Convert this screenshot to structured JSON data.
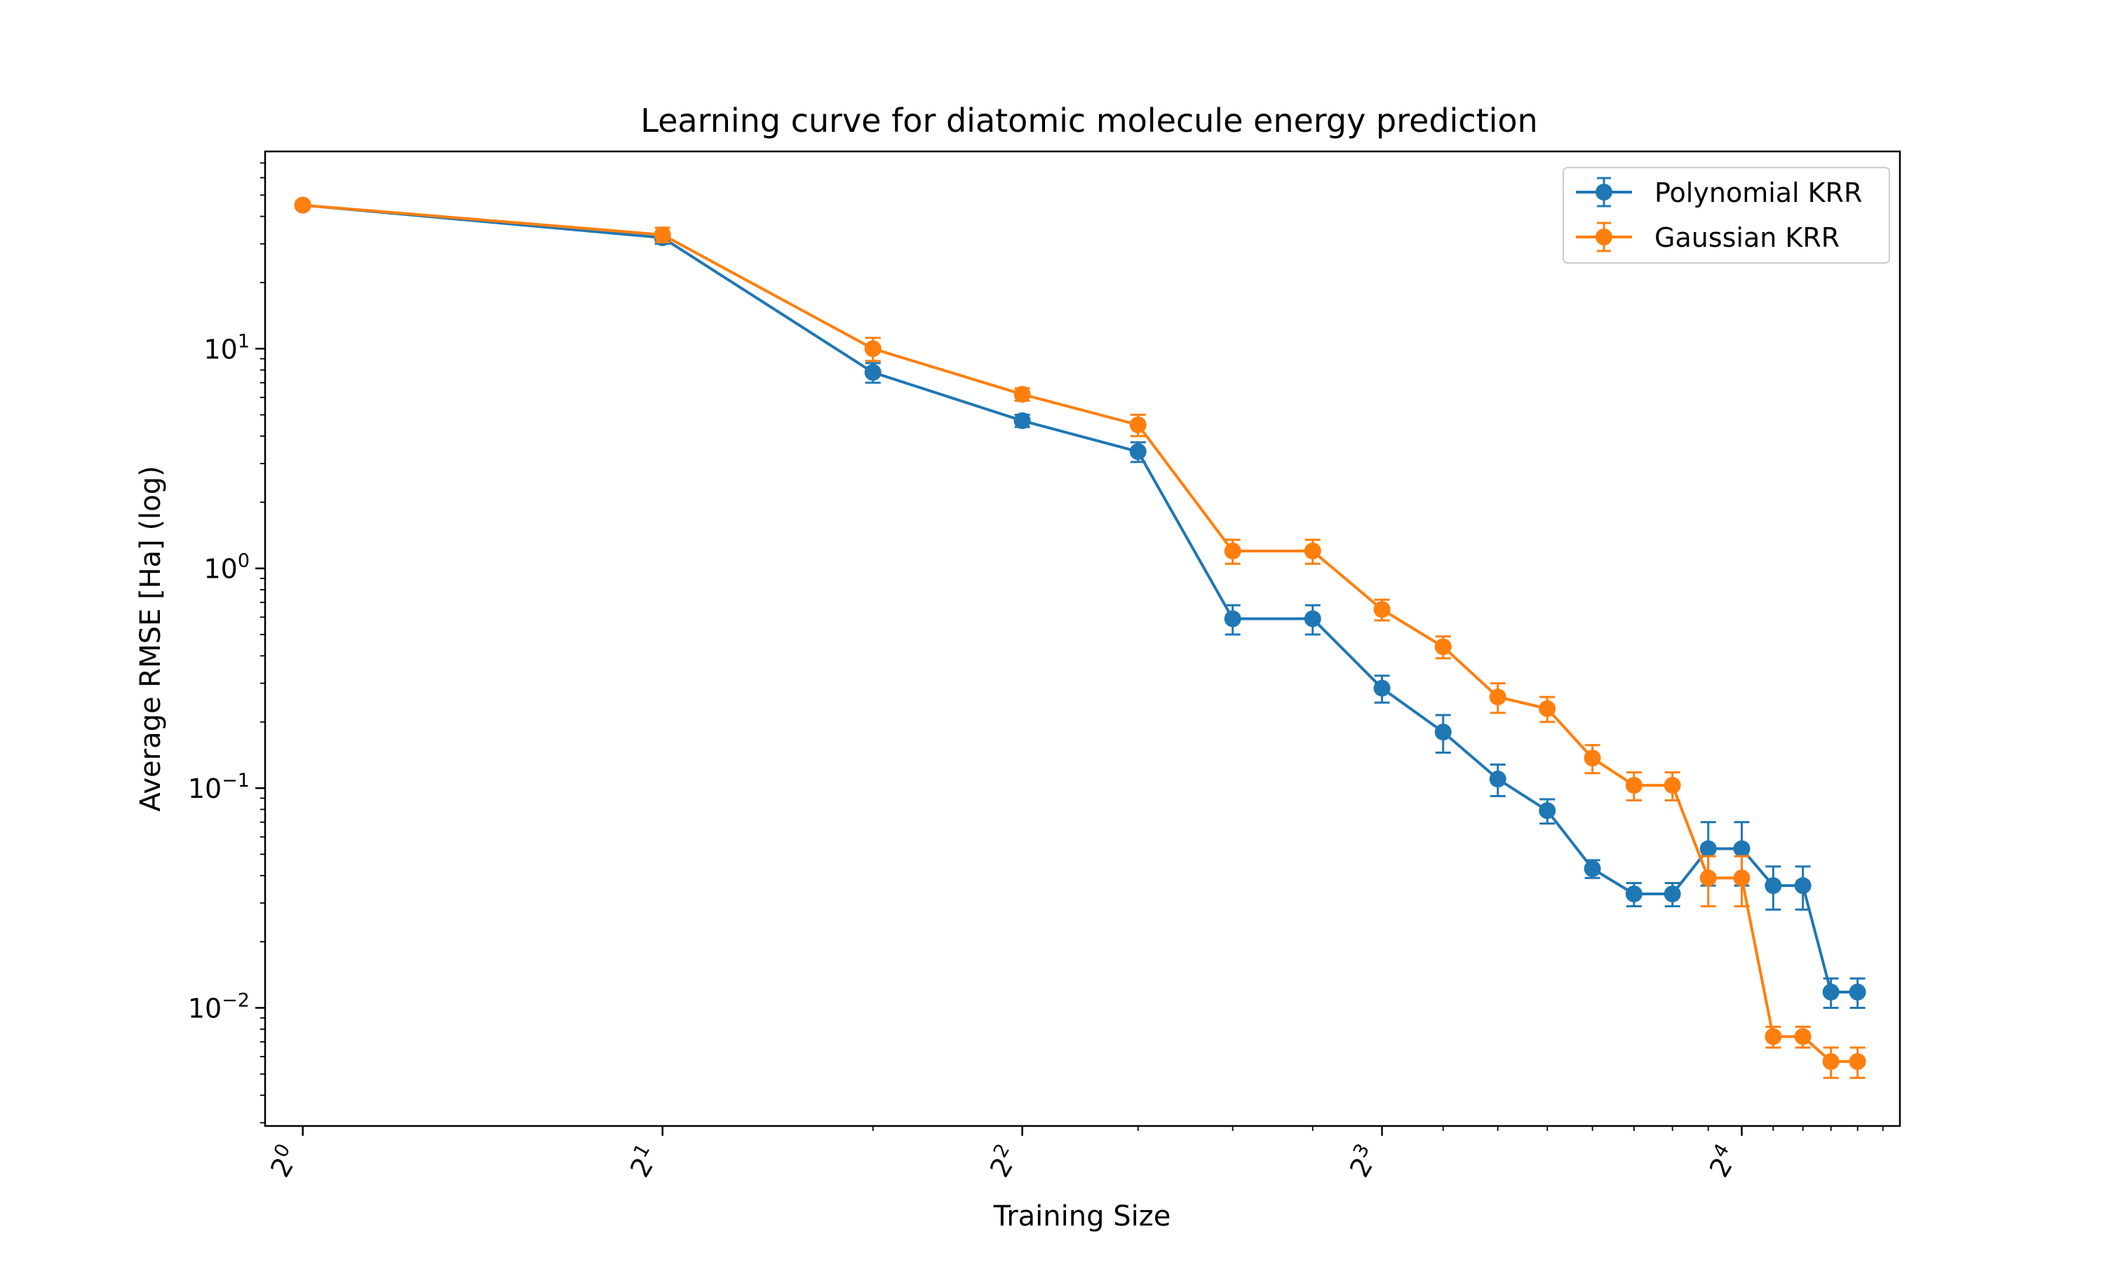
{
  "chart_data": {
    "type": "line",
    "title": "Learning curve for diatomic molecule energy prediction",
    "xlabel": "Training Size",
    "ylabel": "Average RMSE [Ha] (log)",
    "x_scale": "log2",
    "y_scale": "log10",
    "xlim": [
      0.93,
      21.7
    ],
    "ylim": [
      0.0029,
      79
    ],
    "x_ticks": [
      {
        "value": 1,
        "base": "2",
        "exp": "0"
      },
      {
        "value": 2,
        "base": "2",
        "exp": "1"
      },
      {
        "value": 4,
        "base": "2",
        "exp": "2"
      },
      {
        "value": 8,
        "base": "2",
        "exp": "3"
      },
      {
        "value": 16,
        "base": "2",
        "exp": "4"
      }
    ],
    "y_ticks": [
      {
        "value": 10,
        "base": "10",
        "exp": "1"
      },
      {
        "value": 1,
        "base": "10",
        "exp": "0"
      },
      {
        "value": 0.1,
        "base": "10",
        "exp": "−1"
      },
      {
        "value": 0.01,
        "base": "10",
        "exp": "−2"
      }
    ],
    "x": [
      1,
      2,
      3,
      4,
      5,
      6,
      7,
      8,
      9,
      10,
      11,
      12,
      13,
      14,
      15,
      16,
      17,
      18,
      19,
      20
    ],
    "series": [
      {
        "name": "Polynomial KRR",
        "color": "#1f77b4",
        "values": [
          45,
          32,
          7.8,
          4.7,
          3.4,
          0.59,
          0.59,
          0.285,
          0.18,
          0.11,
          0.079,
          0.043,
          0.033,
          0.033,
          0.053,
          0.053,
          0.036,
          0.036,
          0.0118,
          0.0118
        ],
        "errors": [
          1.5,
          2.0,
          0.8,
          0.3,
          0.35,
          0.09,
          0.09,
          0.04,
          0.035,
          0.018,
          0.01,
          0.004,
          0.004,
          0.004,
          0.017,
          0.017,
          0.008,
          0.008,
          0.0018,
          0.0018
        ]
      },
      {
        "name": "Gaussian KRR",
        "color": "#ff7f0e",
        "values": [
          45,
          33,
          10.0,
          6.2,
          4.5,
          1.2,
          1.2,
          0.65,
          0.44,
          0.26,
          0.23,
          0.137,
          0.103,
          0.103,
          0.039,
          0.039,
          0.0074,
          0.0074,
          0.0057,
          0.0057
        ],
        "errors": [
          1.5,
          2.5,
          1.2,
          0.4,
          0.5,
          0.15,
          0.15,
          0.07,
          0.05,
          0.04,
          0.03,
          0.02,
          0.015,
          0.015,
          0.01,
          0.01,
          0.0008,
          0.0008,
          0.0009,
          0.0009
        ]
      }
    ],
    "grid": false,
    "legend": "top-right"
  }
}
